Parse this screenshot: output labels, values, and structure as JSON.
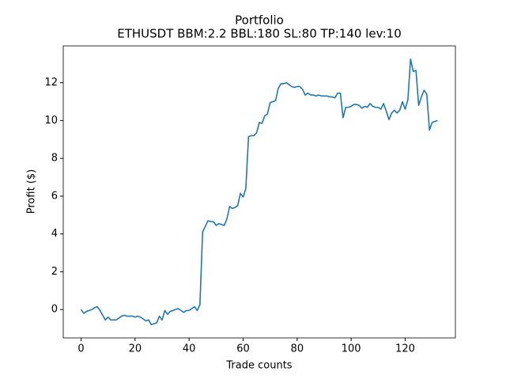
{
  "chart_data": {
    "type": "line",
    "title": "Portfolio",
    "subtitle": "ETHUSDT BBM:2.2 BBL:180 SL:80 TP:140 lev:10",
    "x_label": "Trade counts",
    "y_label": "Profit ($)",
    "x": [
      0,
      1,
      2,
      3,
      4,
      5,
      6,
      7,
      8,
      9,
      10,
      11,
      12,
      13,
      14,
      15,
      16,
      17,
      18,
      19,
      20,
      21,
      22,
      23,
      24,
      25,
      26,
      27,
      28,
      29,
      30,
      31,
      32,
      33,
      34,
      35,
      36,
      37,
      38,
      39,
      40,
      41,
      42,
      43,
      44,
      45,
      46,
      47,
      48,
      49,
      50,
      51,
      52,
      53,
      54,
      55,
      56,
      57,
      58,
      59,
      60,
      61,
      62,
      63,
      64,
      65,
      66,
      67,
      68,
      69,
      70,
      71,
      72,
      73,
      74,
      75,
      76,
      77,
      78,
      79,
      80,
      81,
      82,
      83,
      84,
      85,
      86,
      87,
      88,
      89,
      90,
      91,
      92,
      93,
      94,
      95,
      96,
      97,
      98,
      99,
      100,
      101,
      102,
      103,
      104,
      105,
      106,
      107,
      108,
      109,
      110,
      111,
      112,
      113,
      114,
      115,
      116,
      117,
      118,
      119,
      120,
      121,
      122,
      123,
      124,
      125,
      126,
      127,
      128,
      129,
      130,
      131,
      132
    ],
    "series": [
      {
        "color": "#1f77b4",
        "values": [
          0.0,
          -0.2,
          -0.1,
          -0.05,
          0.0,
          0.1,
          0.15,
          -0.05,
          -0.3,
          -0.55,
          -0.4,
          -0.55,
          -0.55,
          -0.55,
          -0.45,
          -0.35,
          -0.3,
          -0.35,
          -0.35,
          -0.35,
          -0.4,
          -0.35,
          -0.4,
          -0.5,
          -0.6,
          -0.55,
          -0.8,
          -0.75,
          -0.7,
          -0.35,
          -0.55,
          -0.05,
          -0.25,
          -0.1,
          -0.05,
          0.0,
          0.05,
          -0.05,
          -0.15,
          -0.05,
          -0.05,
          0.05,
          0.15,
          -0.05,
          0.25,
          4.1,
          4.4,
          4.7,
          4.65,
          4.65,
          4.45,
          4.55,
          4.5,
          4.45,
          4.8,
          5.45,
          5.35,
          5.4,
          5.5,
          6.15,
          5.95,
          6.4,
          9.15,
          9.2,
          9.2,
          9.35,
          9.9,
          9.85,
          10.25,
          10.35,
          10.95,
          11.0,
          11.05,
          11.7,
          11.95,
          11.95,
          12.0,
          11.9,
          11.8,
          11.75,
          11.8,
          11.8,
          11.65,
          11.35,
          11.45,
          11.35,
          11.35,
          11.3,
          11.35,
          11.3,
          11.3,
          11.3,
          11.25,
          11.25,
          11.2,
          11.45,
          11.45,
          10.15,
          10.7,
          10.7,
          10.75,
          10.85,
          10.85,
          10.8,
          10.65,
          10.75,
          10.7,
          10.9,
          10.75,
          10.7,
          10.7,
          10.6,
          10.9,
          10.5,
          10.05,
          10.4,
          10.55,
          10.4,
          10.55,
          11.0,
          10.6,
          11.1,
          13.25,
          12.6,
          12.65,
          10.8,
          11.25,
          11.6,
          11.4,
          9.5,
          9.9,
          9.95,
          10.0
        ]
      }
    ],
    "xlim": [
      -6.6,
      138.6
    ],
    "xticks": [
      0,
      20,
      40,
      60,
      80,
      100,
      120
    ],
    "ylim": [
      -1.5,
      13.95
    ],
    "yticks": [
      0,
      2,
      4,
      6,
      8,
      10,
      12
    ]
  }
}
